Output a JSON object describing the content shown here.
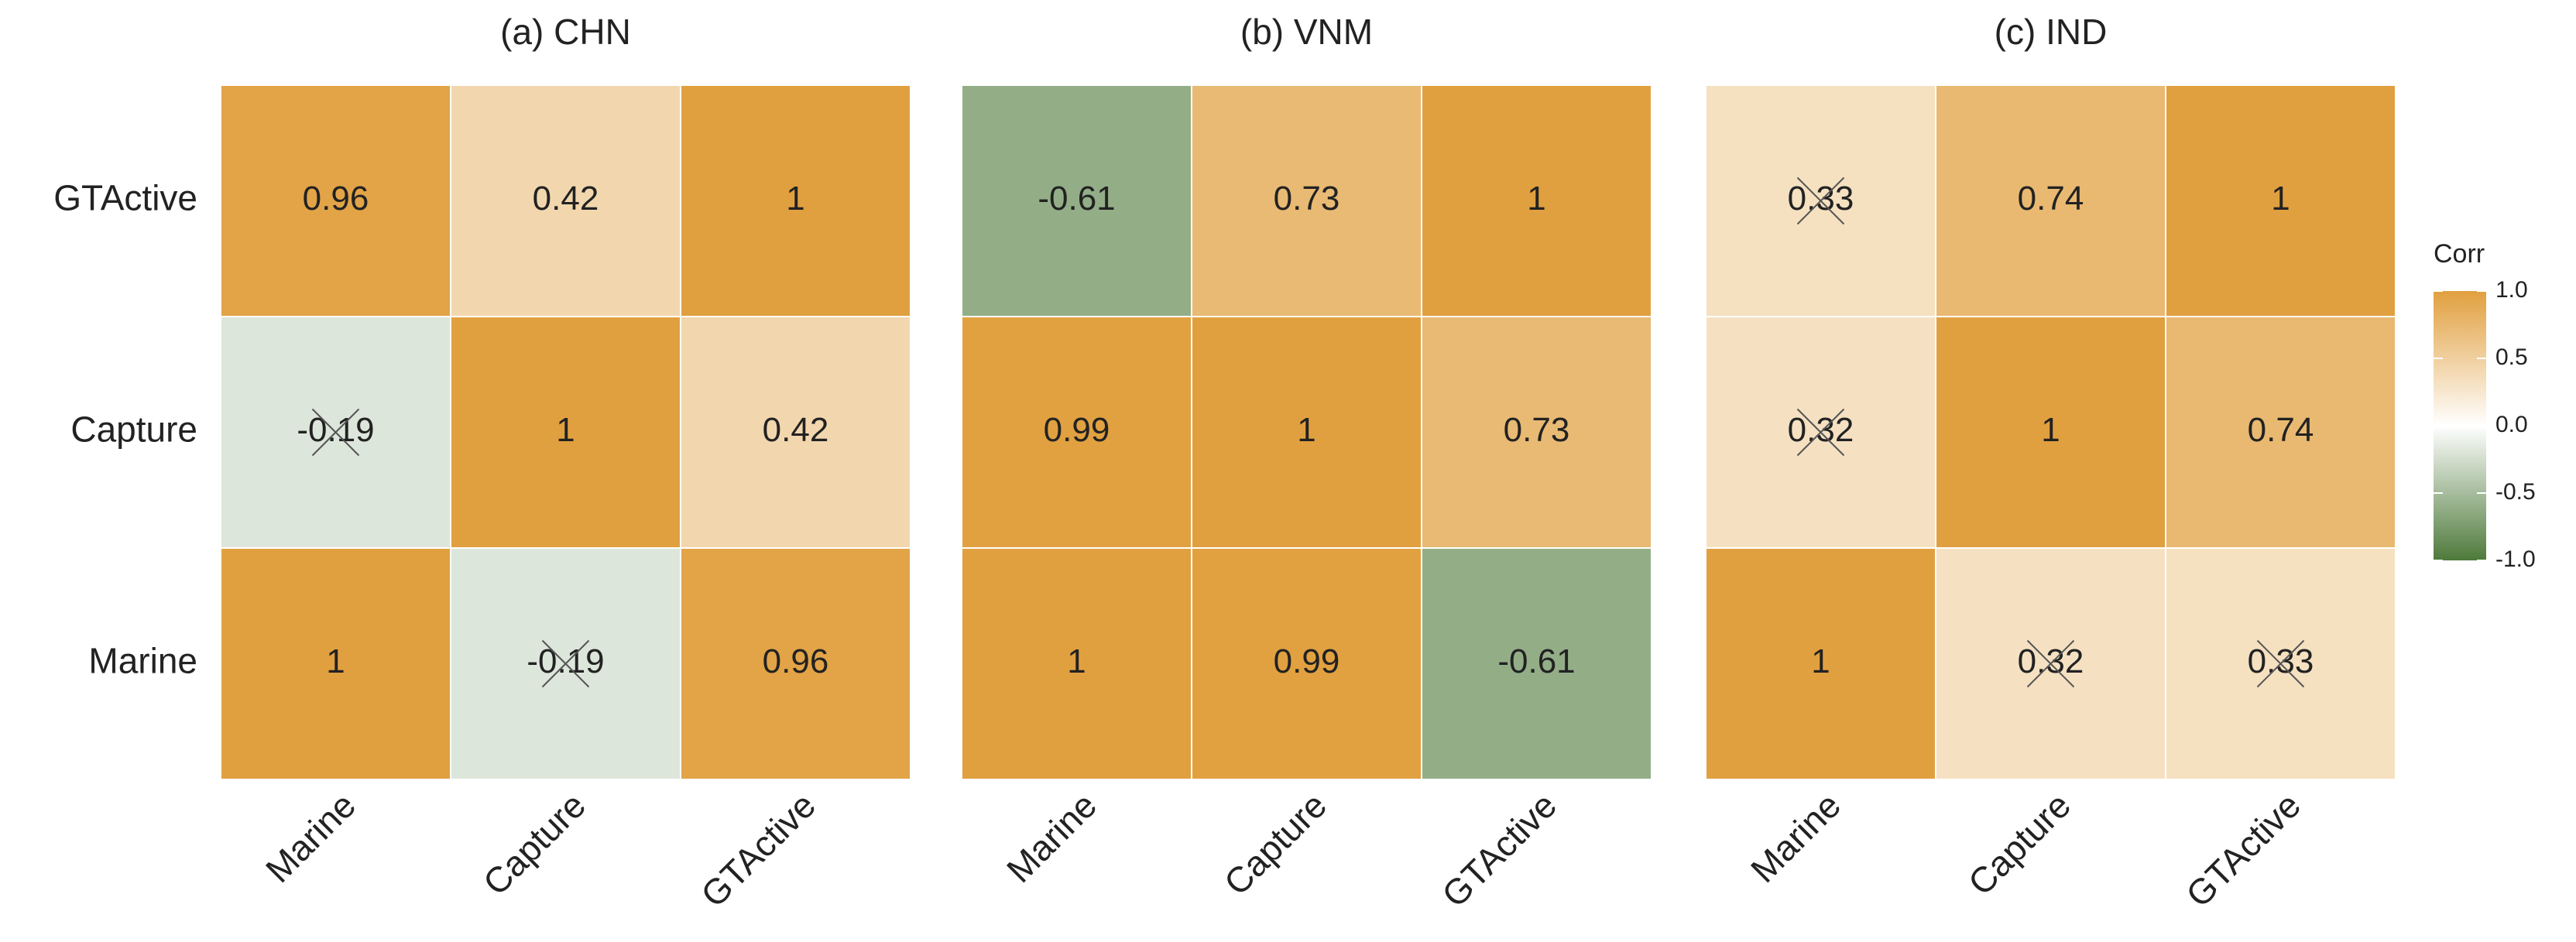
{
  "chart_data": [
    {
      "type": "heatmap",
      "title": "(a) CHN",
      "x": [
        "Marine",
        "Capture",
        "GTActive"
      ],
      "y": [
        "Marine",
        "Capture",
        "GTActive"
      ],
      "values": [
        [
          1,
          -0.19,
          0.96
        ],
        [
          -0.19,
          1,
          0.42
        ],
        [
          0.96,
          0.42,
          1
        ]
      ],
      "crossed": [
        [
          false,
          true,
          false
        ],
        [
          true,
          false,
          false
        ],
        [
          false,
          false,
          false
        ]
      ]
    },
    {
      "type": "heatmap",
      "title": "(b) VNM",
      "x": [
        "Marine",
        "Capture",
        "GTActive"
      ],
      "values": [
        [
          1,
          0.99,
          -0.61
        ],
        [
          0.99,
          1,
          0.73
        ],
        [
          -0.61,
          0.73,
          1
        ]
      ],
      "crossed": [
        [
          false,
          false,
          false
        ],
        [
          false,
          false,
          false
        ],
        [
          false,
          false,
          false
        ]
      ]
    },
    {
      "type": "heatmap",
      "title": "(c) IND",
      "x": [
        "Marine",
        "Capture",
        "GTActive"
      ],
      "values": [
        [
          1,
          0.32,
          0.33
        ],
        [
          0.32,
          1,
          0.74
        ],
        [
          0.33,
          0.74,
          1
        ]
      ],
      "crossed": [
        [
          false,
          true,
          true
        ],
        [
          true,
          false,
          false
        ],
        [
          true,
          false,
          false
        ]
      ]
    }
  ],
  "colorbar": {
    "title": "Corr",
    "lim": [
      -1,
      1
    ],
    "colors": [
      "#4e7a3b",
      "#ffffff",
      "#e1a03f"
    ],
    "ticks": [
      {
        "value": 1,
        "label": "1.0"
      },
      0.5,
      {
        "value": 0,
        "label": "0.0"
      },
      -0.5,
      {
        "value": -1,
        "label": "-1.0"
      }
    ]
  }
}
